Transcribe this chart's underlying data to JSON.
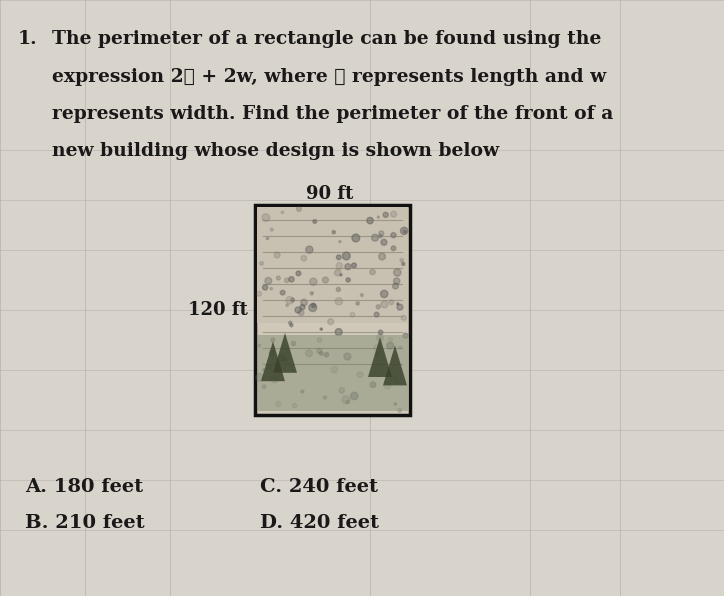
{
  "background_color": "#c8c4bc",
  "page_color": "#dedad4",
  "text_color": "#1a1818",
  "question_number": "1.",
  "line1": "The perimeter of a rectangle can be found using the",
  "line2": "expression 2ℓ + 2w, where ℓ represents length and w",
  "line3": "represents width. Find the perimeter of the front of a",
  "line4": "new building whose design is shown below",
  "dim_top": "90 ft",
  "dim_left": "120 ft",
  "answer_A": "A. 180 feet",
  "answer_B": "B. 210 feet",
  "answer_C": "C. 240 feet",
  "answer_D": "D. 420 feet",
  "grid_color": "#b0aca4",
  "rect_border": "#111111",
  "photo_bg": "#c8c0b0",
  "photo_dark": "#606060"
}
